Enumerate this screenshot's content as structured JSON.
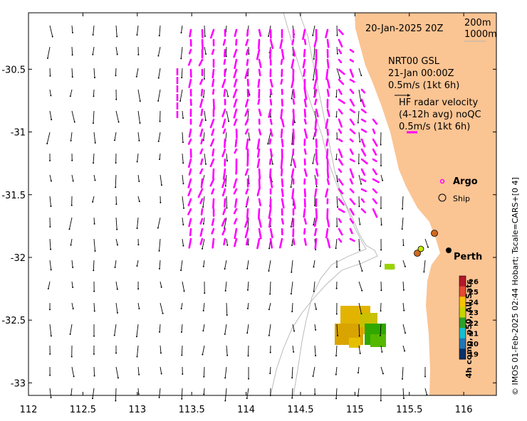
{
  "map": {
    "date": "20-Jan-2025 20Z",
    "depth_contours": [
      "200m",
      "1000m"
    ],
    "model_run": "NRT00 GSL",
    "model_time": "21-Jan 00:00Z",
    "model_scale": "0.5m/s (1kt 6h)",
    "radar_title": "HF radar velocity",
    "radar_sub": "(4-12h avg) noQC",
    "radar_scale": "0.5m/s (1kt 6h)",
    "legend_argo": "Argo",
    "legend_ship": "Ship",
    "city": "Perth",
    "credit": "© IMOS 01-Feb-2025 02:44 Hobart; Tscale=CARS+[0 4]",
    "colorbar_title": "4h comp, p50, All Sats",
    "x_ticks": [
      "112",
      "112.5",
      "113",
      "113.5",
      "114",
      "114.5",
      "115",
      "115.5",
      "116"
    ],
    "y_ticks": [
      "-30.5",
      "-31",
      "-31.5",
      "-32",
      "-32.5",
      "-33"
    ],
    "colorbar_ticks": [
      "26",
      "25",
      "24",
      "23",
      "22",
      "21",
      "20",
      "19"
    ],
    "extent": {
      "lon": [
        112,
        116.3
      ],
      "lat": [
        -33.1,
        -30.05
      ]
    },
    "colors": {
      "land": "#fbc493",
      "radar": "#ff00ff",
      "arrow": "#000000",
      "contour": "#b4b4b4"
    }
  }
}
